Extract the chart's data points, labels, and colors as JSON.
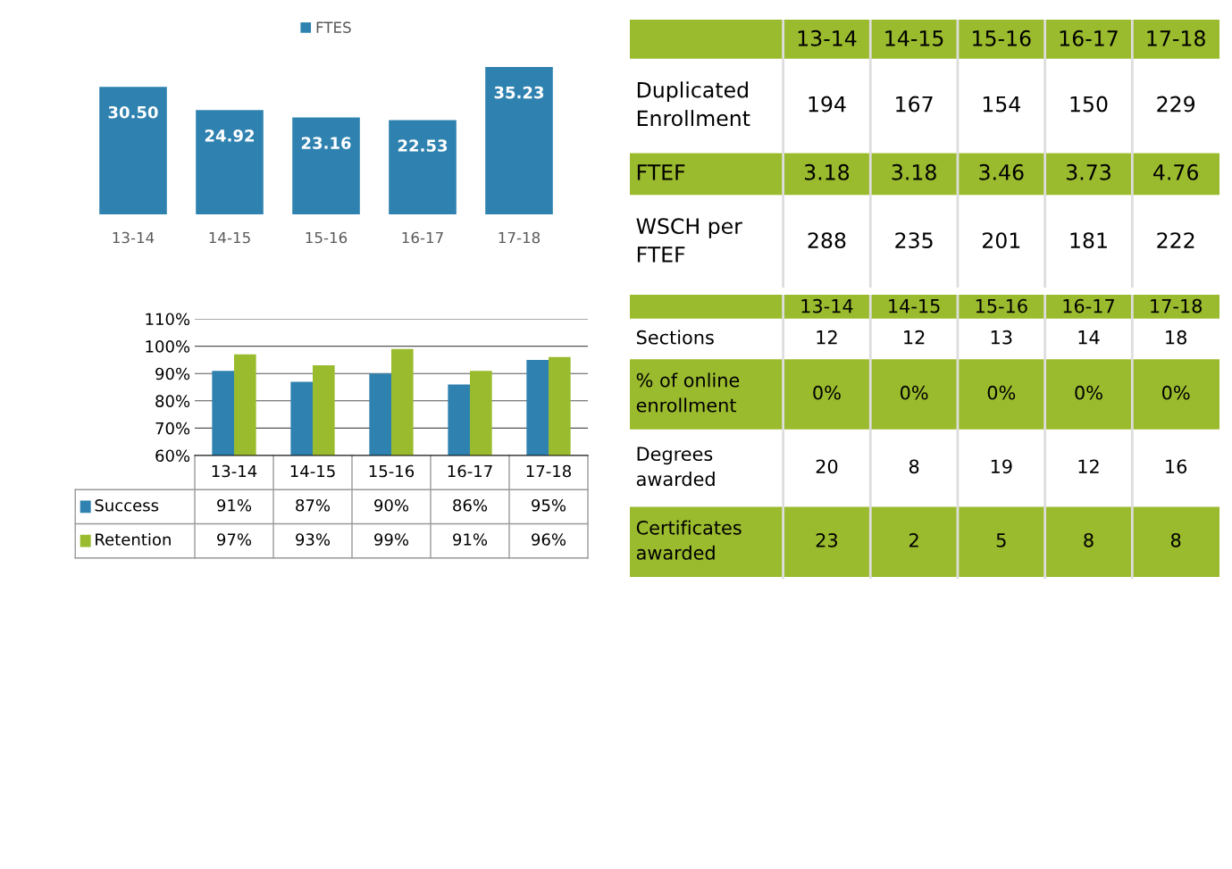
{
  "chart_data": [
    {
      "type": "bar",
      "categories": [
        "13-14",
        "14-15",
        "15-16",
        "16-17",
        "17-18"
      ],
      "series": [
        {
          "name": "FTES",
          "color": "#2f82b0",
          "values": [
            30.5,
            24.92,
            23.16,
            22.53,
            35.23
          ],
          "value_labels": [
            "30.50",
            "24.92",
            "23.16",
            "22.53",
            "35.23"
          ]
        }
      ],
      "legend": "top",
      "tick_labels": "x"
    },
    {
      "type": "bar",
      "categories": [
        "13-14",
        "14-15",
        "15-16",
        "16-17",
        "17-18"
      ],
      "series": [
        {
          "name": "Success",
          "color": "#2f82b0",
          "values": [
            91,
            87,
            90,
            86,
            95
          ],
          "value_labels": [
            "91%",
            "87%",
            "90%",
            "86%",
            "95%"
          ]
        },
        {
          "name": "Retention",
          "color": "#9bbb2e",
          "values": [
            97,
            93,
            99,
            91,
            96
          ],
          "value_labels": [
            "97%",
            "93%",
            "99%",
            "91%",
            "96%"
          ]
        }
      ],
      "ylim": [
        60,
        110
      ],
      "yticks": [
        {
          "value": 60,
          "label": "60%"
        },
        {
          "value": 70,
          "label": "70%"
        },
        {
          "value": 80,
          "label": "80%"
        },
        {
          "value": 90,
          "label": "90%"
        },
        {
          "value": 100,
          "label": "100%"
        },
        {
          "value": 110,
          "label": "110%"
        }
      ],
      "grid": "y",
      "legend": "bottom"
    },
    {
      "type": "other",
      "categories": [
        "13-14",
        "14-15",
        "15-16",
        "16-17",
        "17-18"
      ],
      "y_categories": [
        "Duplicated\nEnrollment",
        "FTEF",
        "WSCH per\nFTEF"
      ],
      "cell_labels": [
        [
          "194",
          "167",
          "154",
          "150",
          "229"
        ],
        [
          "3.18",
          "3.18",
          "3.46",
          "3.73",
          "4.76"
        ],
        [
          "288",
          "235",
          "201",
          "181",
          "222"
        ]
      ],
      "colors": [
        "#9bbb2e",
        "#ffffff",
        "#9bbb2e",
        "#ffffff"
      ]
    },
    {
      "type": "other",
      "categories": [
        "13-14",
        "14-15",
        "15-16",
        "16-17",
        "17-18"
      ],
      "y_categories": [
        "Sections",
        "% of online\nenrollment",
        "Degrees\nawarded",
        "Certificates\nawarded"
      ],
      "cell_labels": [
        [
          "12",
          "12",
          "13",
          "14",
          "18"
        ],
        [
          "0%",
          "0%",
          "0%",
          "0%",
          "0%"
        ],
        [
          "20",
          "8",
          "19",
          "12",
          "16"
        ],
        [
          "23",
          "2",
          "5",
          "8",
          "8"
        ]
      ],
      "colors": [
        "#9bbb2e",
        "#ffffff",
        "#9bbb2e",
        "#ffffff",
        "#9bbb2e"
      ]
    }
  ]
}
